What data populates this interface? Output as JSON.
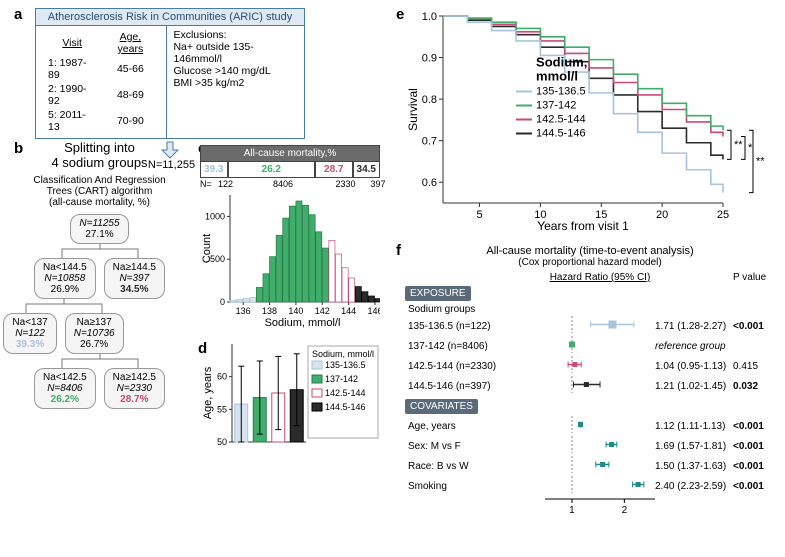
{
  "colors": {
    "g1": "#a7c3de",
    "g2": "#3eae6a",
    "g3": "#c94a7a",
    "g4": "#2b2b2b",
    "g1_fill": "#d7e4f0",
    "g2_fill": "#3eae6a",
    "g3_fill": "#ffffff",
    "g4_fill": "#2b2b2b",
    "teal": "#1f8a8a",
    "forest": "#2a8c8c",
    "forest_ref": "#2a8c8c",
    "axis": "#333333",
    "grid": "#e5e5e5"
  },
  "panelA": {
    "title": "Atherosclerosis Risk in Communities (ARIC) study",
    "visits_header": [
      "Visit",
      "Age, years"
    ],
    "visits": [
      [
        "1: 1987-89",
        "45-66"
      ],
      [
        "2: 1990-92",
        "48-69"
      ],
      [
        "5: 2011-13",
        "70-90"
      ]
    ],
    "excl_title": "Exclusions:",
    "exclusions": [
      "Na+ outside 135-146mmol/l",
      "Glucose >140 mg/dL",
      "BMI >35 kg/m2"
    ],
    "n": "N=11,255"
  },
  "panelB": {
    "title1": "Splitting into",
    "title2": "4 sodium groups",
    "sub1": "Classification And Regression",
    "sub2": "Trees  (CART) algorithm",
    "sub3": "(all-cause mortality, %)",
    "root": {
      "n": "N=11255",
      "pct": "27.1%"
    },
    "r1": [
      {
        "cond": "Na<144.5",
        "n": "N=10858",
        "pct": "26.9%"
      },
      {
        "cond": "Na≥144.5",
        "n": "N=397",
        "pct": "34.5%",
        "color_key": "g4"
      }
    ],
    "r2": [
      {
        "cond": "Na<137",
        "n": "N=122",
        "pct": "39.3%",
        "color_key": "g1"
      },
      {
        "cond": "Na≥137",
        "n": "N=10736",
        "pct": "26.7%"
      }
    ],
    "r3": [
      {
        "cond": "Na<142.5",
        "n": "N=8406",
        "pct": "26.2%",
        "color_key": "g2"
      },
      {
        "cond": "Na≥142.5",
        "n": "N=2330",
        "pct": "28.7%",
        "color_key": "g3"
      }
    ]
  },
  "panelC": {
    "type": "histogram",
    "mort_title": "All-cause mortality,%",
    "mort_vals": [
      "39.3",
      "26.2",
      "28.7",
      "34.5"
    ],
    "mort_colors": [
      "g1",
      "g2",
      "g3",
      "g4"
    ],
    "mort_widths": [
      22,
      70,
      30,
      22
    ],
    "n_label": "N=",
    "n_vals": [
      "122",
      "8406",
      "2330",
      "397"
    ],
    "xlabel": "Sodium, mmol/l",
    "ylabel": "Count",
    "xlim": [
      135,
      146
    ],
    "ylim": [
      0,
      1250
    ],
    "yticks": [
      0,
      500,
      1000
    ],
    "xticks": [
      136,
      138,
      140,
      142,
      144,
      146
    ],
    "bin_width": 0.5,
    "bins": [
      {
        "x": 135.0,
        "c": 20,
        "g": 1
      },
      {
        "x": 135.5,
        "c": 30,
        "g": 1
      },
      {
        "x": 136.0,
        "c": 40,
        "g": 1
      },
      {
        "x": 136.5,
        "c": 55,
        "g": 1
      },
      {
        "x": 137.0,
        "c": 170,
        "g": 2
      },
      {
        "x": 137.5,
        "c": 330,
        "g": 2
      },
      {
        "x": 138.0,
        "c": 530,
        "g": 2
      },
      {
        "x": 138.5,
        "c": 780,
        "g": 2
      },
      {
        "x": 139.0,
        "c": 980,
        "g": 2
      },
      {
        "x": 139.5,
        "c": 1120,
        "g": 2
      },
      {
        "x": 140.0,
        "c": 1180,
        "g": 2
      },
      {
        "x": 140.5,
        "c": 1130,
        "g": 2
      },
      {
        "x": 141.0,
        "c": 1020,
        "g": 2
      },
      {
        "x": 141.5,
        "c": 820,
        "g": 2
      },
      {
        "x": 142.0,
        "c": 630,
        "g": 2
      },
      {
        "x": 142.5,
        "c": 720,
        "g": 3
      },
      {
        "x": 143.0,
        "c": 560,
        "g": 3
      },
      {
        "x": 143.5,
        "c": 400,
        "g": 3
      },
      {
        "x": 144.0,
        "c": 280,
        "g": 3
      },
      {
        "x": 144.5,
        "c": 180,
        "g": 4
      },
      {
        "x": 145.0,
        "c": 120,
        "g": 4
      },
      {
        "x": 145.5,
        "c": 70,
        "g": 4
      },
      {
        "x": 146.0,
        "c": 40,
        "g": 4
      }
    ]
  },
  "panelD": {
    "type": "bar",
    "ylabel": "Age, years",
    "legend_title": "Sodium, mmol/l",
    "legend": [
      "135-136.5",
      "137-142",
      "142.5-144",
      "144.5-146"
    ],
    "ylim": [
      50,
      65
    ],
    "yticks": [
      50,
      55,
      60
    ],
    "values": [
      55.8,
      56.8,
      57.5,
      58.0
    ],
    "err": [
      5.8,
      5.6,
      5.6,
      5.5
    ]
  },
  "panelE": {
    "type": "survival",
    "ylabel": "Survival",
    "xlabel": "Years from visit 1",
    "legend_title": "Sodium,",
    "legend_sub": "mmol/l",
    "legend": [
      "135-136.5",
      "137-142",
      "142.5-144",
      "144.5-146"
    ],
    "xlim": [
      2,
      25
    ],
    "ylim": [
      0.55,
      1.0
    ],
    "xticks": [
      5,
      10,
      15,
      20,
      25
    ],
    "yticks": [
      0.6,
      0.7,
      0.8,
      0.9,
      1.0
    ],
    "sig": [
      {
        "pair": "g2-g4",
        "label": "**"
      },
      {
        "pair": "g3-g4",
        "label": "*"
      },
      {
        "pair": "g1-g2",
        "label": "**"
      }
    ],
    "curves": {
      "g1": [
        [
          2,
          1.0
        ],
        [
          4,
          0.985
        ],
        [
          6,
          0.965
        ],
        [
          8,
          0.94
        ],
        [
          10,
          0.905
        ],
        [
          12,
          0.865
        ],
        [
          14,
          0.815
        ],
        [
          16,
          0.765
        ],
        [
          18,
          0.72
        ],
        [
          20,
          0.67
        ],
        [
          22,
          0.63
        ],
        [
          24,
          0.595
        ],
        [
          25,
          0.575
        ]
      ],
      "g2": [
        [
          2,
          1.0
        ],
        [
          4,
          0.995
        ],
        [
          6,
          0.985
        ],
        [
          8,
          0.97
        ],
        [
          10,
          0.95
        ],
        [
          12,
          0.925
        ],
        [
          14,
          0.895
        ],
        [
          16,
          0.86
        ],
        [
          18,
          0.825
        ],
        [
          20,
          0.79
        ],
        [
          22,
          0.76
        ],
        [
          24,
          0.735
        ],
        [
          25,
          0.725
        ]
      ],
      "g3": [
        [
          2,
          1.0
        ],
        [
          4,
          0.993
        ],
        [
          6,
          0.98
        ],
        [
          8,
          0.962
        ],
        [
          10,
          0.94
        ],
        [
          12,
          0.91
        ],
        [
          14,
          0.875
        ],
        [
          16,
          0.84
        ],
        [
          18,
          0.81
        ],
        [
          20,
          0.775
        ],
        [
          22,
          0.745
        ],
        [
          24,
          0.72
        ],
        [
          25,
          0.71
        ]
      ],
      "g4": [
        [
          2,
          1.0
        ],
        [
          4,
          0.99
        ],
        [
          6,
          0.975
        ],
        [
          8,
          0.955
        ],
        [
          10,
          0.925
        ],
        [
          12,
          0.89
        ],
        [
          14,
          0.85
        ],
        [
          16,
          0.81
        ],
        [
          18,
          0.77
        ],
        [
          20,
          0.73
        ],
        [
          22,
          0.695
        ],
        [
          24,
          0.665
        ],
        [
          25,
          0.655
        ]
      ]
    }
  },
  "panelF": {
    "title": "All-cause mortality (time-to-event analysis)",
    "subtitle": "(Cox proportional hazard model)",
    "col_headers": [
      "Hazard Ratio (95% CI)",
      "P value"
    ],
    "section1": "EXPOSURE",
    "section1_sub": "Sodium groups",
    "section2": "COVARIATES",
    "xscale": "log",
    "xlim": [
      0.7,
      3.0
    ],
    "xticks": [
      1,
      2
    ],
    "rows": [
      {
        "label": "135-136.5 (n=122)",
        "hr": 1.71,
        "lo": 1.28,
        "hi": 2.27,
        "txt": "1.71 (1.28-2.27)",
        "p": "<0.001",
        "bold": true,
        "color": "g1",
        "large": true
      },
      {
        "label": "137-142 (n=8406)",
        "ref": true,
        "txt": "reference group",
        "color": "g2"
      },
      {
        "label": "142.5-144 (n=2330)",
        "hr": 1.04,
        "lo": 0.95,
        "hi": 1.13,
        "txt": "1.04 (0.95-1.13)",
        "p": "0.415",
        "bold": false,
        "color": "g3"
      },
      {
        "label": "144.5-146 (n=397)",
        "hr": 1.21,
        "lo": 1.02,
        "hi": 1.45,
        "txt": "1.21 (1.02-1.45)",
        "p": "0.032",
        "bold": true,
        "color": "g4"
      }
    ],
    "cov": [
      {
        "label": "Age, years",
        "hr": 1.12,
        "lo": 1.11,
        "hi": 1.13,
        "txt": "1.12 (1.11-1.13)",
        "p": "<0.001"
      },
      {
        "label": "Sex: M vs F",
        "hr": 1.69,
        "lo": 1.57,
        "hi": 1.81,
        "txt": "1.69 (1.57-1.81)",
        "p": "<0.001"
      },
      {
        "label": "Race: B vs W",
        "hr": 1.5,
        "lo": 1.37,
        "hi": 1.63,
        "txt": "1.50 (1.37-1.63)",
        "p": "<0.001"
      },
      {
        "label": "Smoking",
        "hr": 2.4,
        "lo": 2.23,
        "hi": 2.59,
        "txt": "2.40 (2.23-2.59)",
        "p": "<0.001"
      }
    ]
  }
}
